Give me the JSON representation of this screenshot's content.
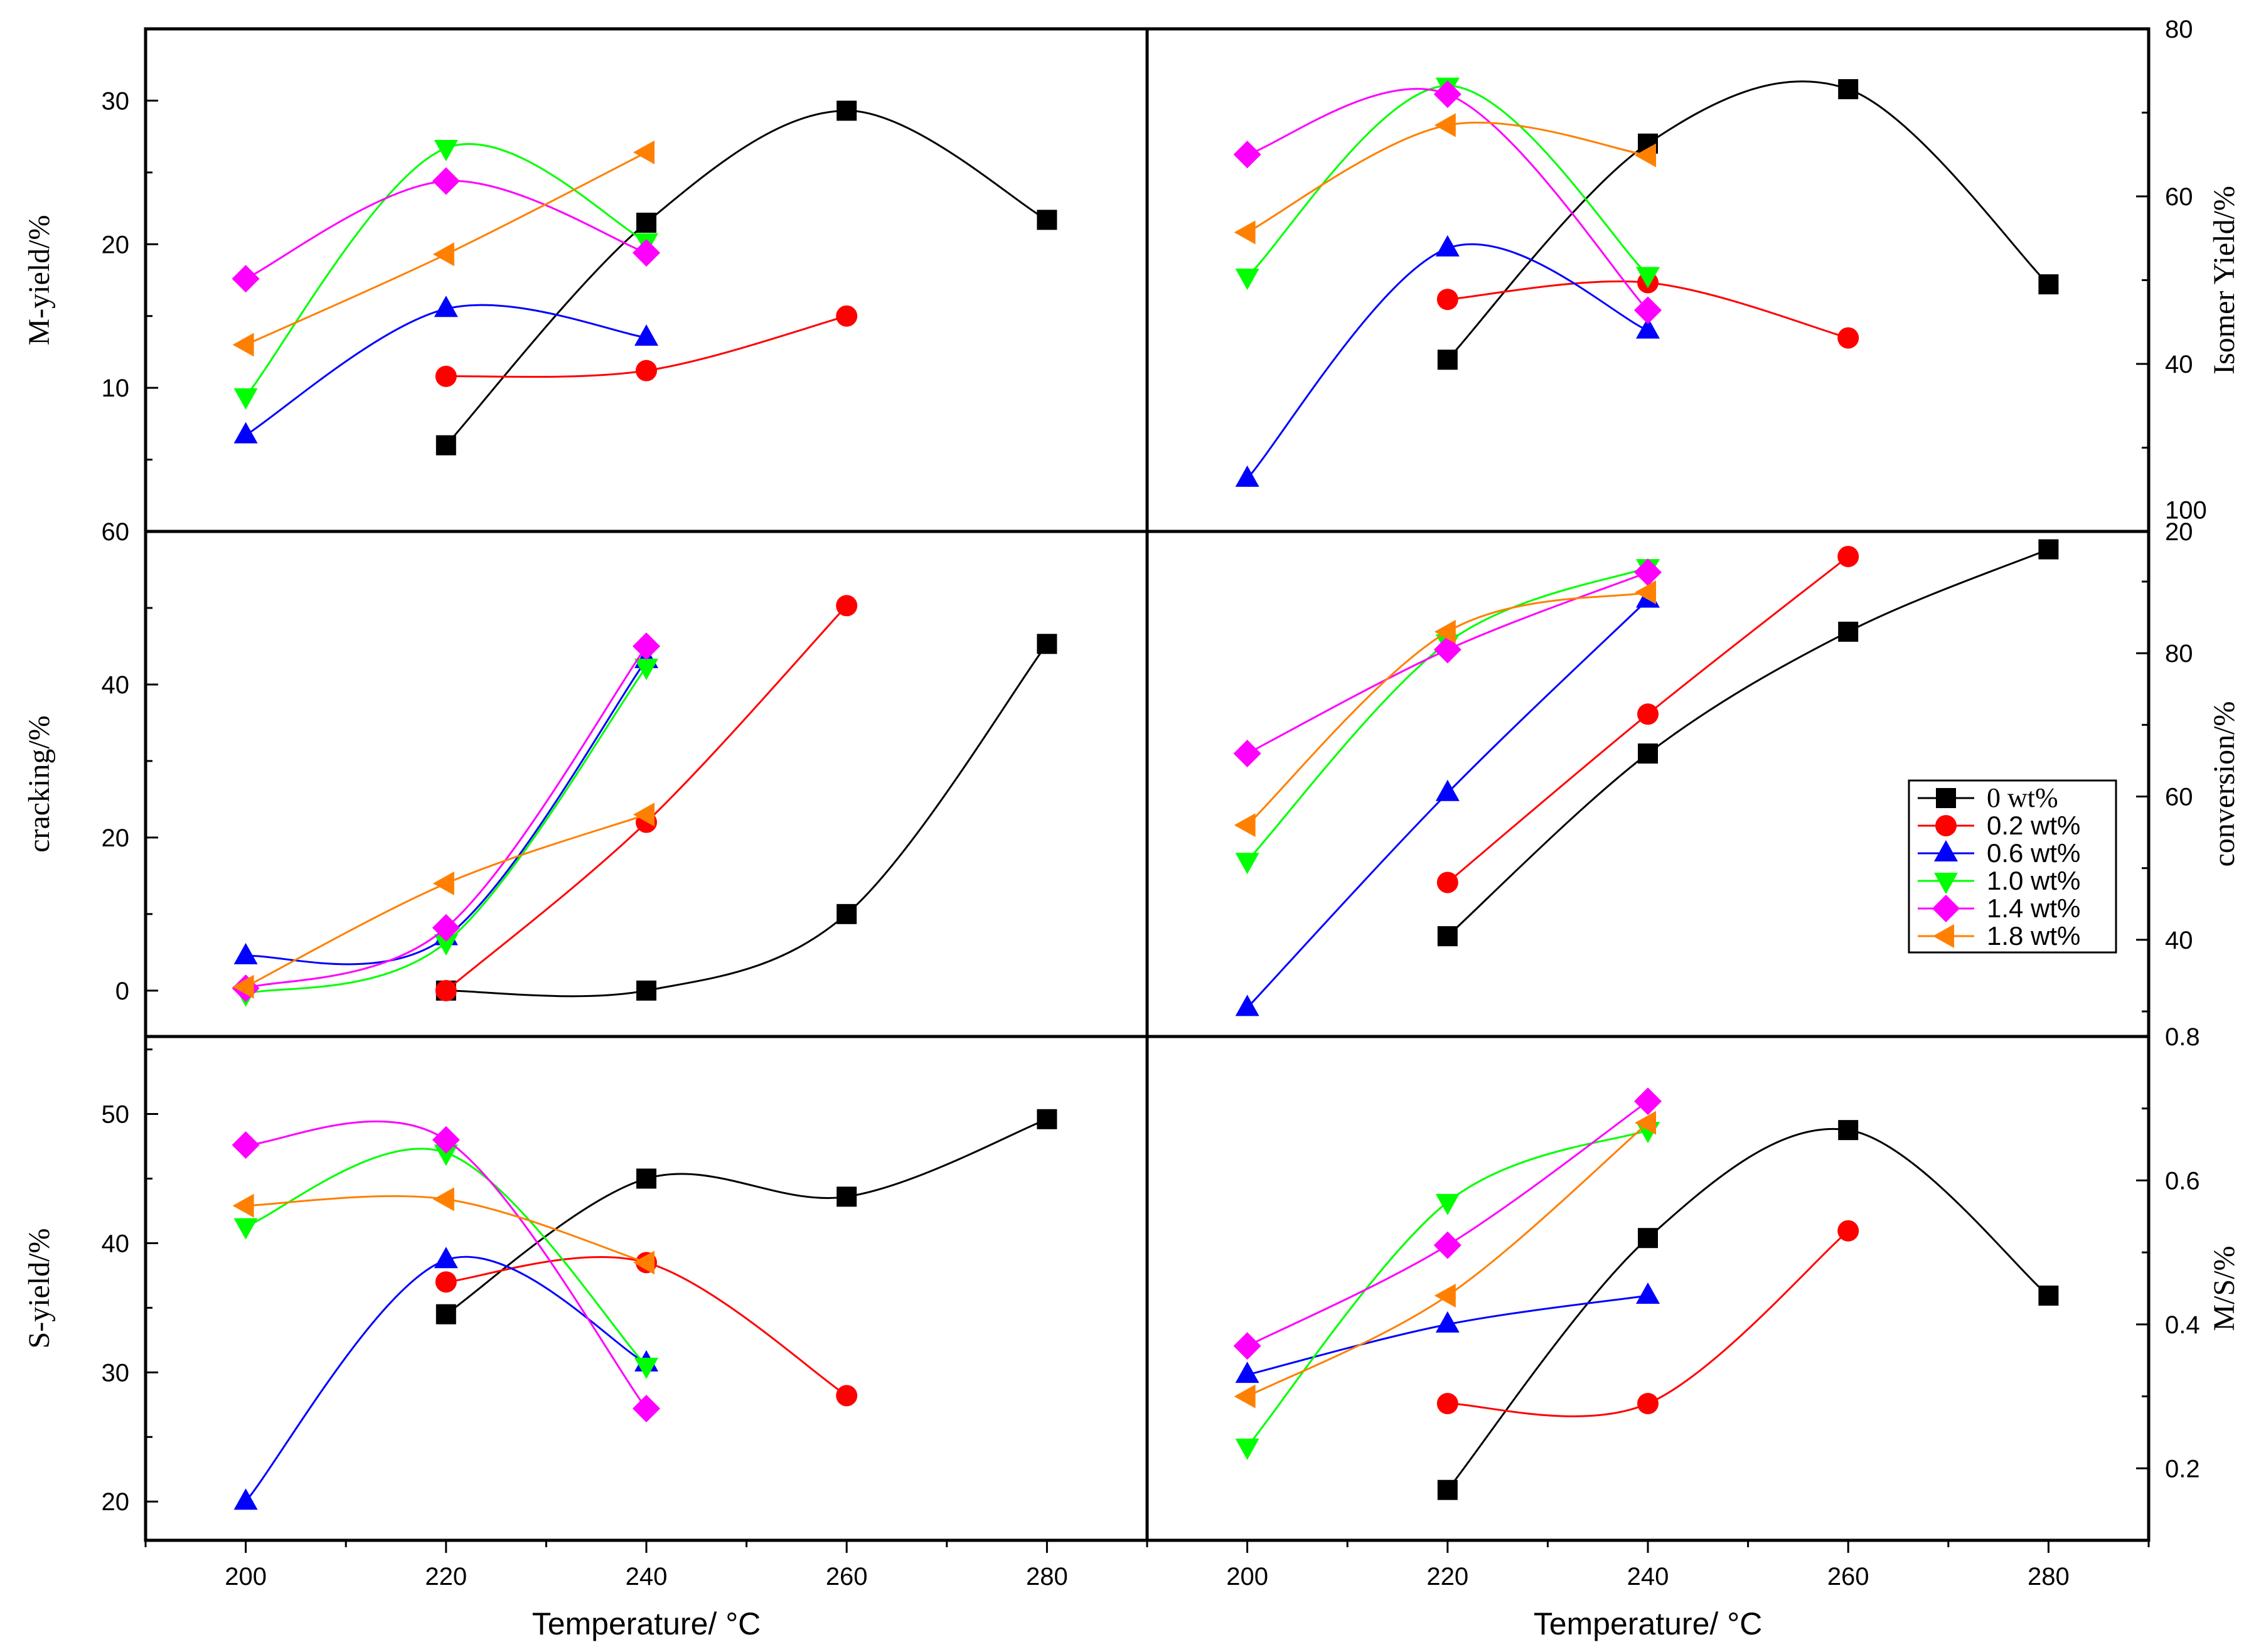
{
  "chart_data": {
    "type": "scatter",
    "x_axis": {
      "label_text": "Temperature/",
      "label_unit": "°C",
      "ticks": [
        "200",
        "220",
        "240",
        "260",
        "280"
      ],
      "range": [
        190,
        290
      ]
    },
    "legend": {
      "placement": "right-middle",
      "entries": [
        "0 wt%",
        "0.2 wt%",
        "0.6 wt%",
        "1.0 wt%",
        "1.4 wt%",
        "1.8 wt%"
      ]
    },
    "series_style": [
      {
        "name": "0 wt%",
        "color": "#000000",
        "marker": "square"
      },
      {
        "name": "0.2 wt%",
        "color": "#ff0000",
        "marker": "circle"
      },
      {
        "name": "0.6 wt%",
        "color": "#0000ff",
        "marker": "triangle-up"
      },
      {
        "name": "1.0 wt%",
        "color": "#00ff00",
        "marker": "triangle-down"
      },
      {
        "name": "1.4 wt%",
        "color": "#ff00ff",
        "marker": "diamond"
      },
      {
        "name": "1.8 wt%",
        "color": "#ff8000",
        "marker": "triangle-left"
      }
    ],
    "panels": [
      {
        "id": "m-yield",
        "ylabel": "M-yield/%",
        "axis_side": "left",
        "ylim": [
          0,
          35
        ],
        "yticks": [
          10,
          20,
          30
        ],
        "tick_labels": [
          "10",
          "20",
          "30"
        ],
        "series": [
          {
            "name": "0 wt%",
            "x": [
              220,
              240,
              260,
              280
            ],
            "y": [
              6.0,
              21.5,
              29.3,
              21.7
            ]
          },
          {
            "name": "0.2 wt%",
            "x": [
              220,
              240,
              260
            ],
            "y": [
              10.8,
              11.2,
              15.0
            ]
          },
          {
            "name": "0.6 wt%",
            "x": [
              200,
              220,
              240
            ],
            "y": [
              6.7,
              15.5,
              13.5
            ]
          },
          {
            "name": "1.0 wt%",
            "x": [
              200,
              220,
              240
            ],
            "y": [
              9.4,
              26.7,
              20.2
            ]
          },
          {
            "name": "1.4 wt%",
            "x": [
              200,
              220,
              240
            ],
            "y": [
              17.6,
              24.4,
              19.4
            ]
          },
          {
            "name": "1.8 wt%",
            "x": [
              200,
              220,
              240
            ],
            "y": [
              13.0,
              19.3,
              26.4
            ]
          }
        ]
      },
      {
        "id": "isomer-yield",
        "ylabel": "Isomer Yield/%",
        "axis_side": "right",
        "ylim": [
          20,
          80
        ],
        "yticks": [
          20,
          40,
          60,
          80
        ],
        "tick_labels": [
          "20",
          "40",
          "60",
          "80"
        ],
        "series": [
          {
            "name": "0 wt%",
            "x": [
              220,
              240,
              260,
              280
            ],
            "y": [
              40.5,
              66.3,
              72.8,
              49.5
            ]
          },
          {
            "name": "0.2 wt%",
            "x": [
              220,
              240,
              260
            ],
            "y": [
              47.7,
              49.7,
              43.1
            ]
          },
          {
            "name": "0.6 wt%",
            "x": [
              200,
              220,
              240
            ],
            "y": [
              26.3,
              53.8,
              44.0
            ]
          },
          {
            "name": "1.0 wt%",
            "x": [
              200,
              220,
              240
            ],
            "y": [
              50.4,
              73.2,
              50.6
            ]
          },
          {
            "name": "1.4 wt%",
            "x": [
              200,
              220,
              240
            ],
            "y": [
              65.0,
              72.2,
              46.4
            ]
          },
          {
            "name": "1.8 wt%",
            "x": [
              200,
              220,
              240
            ],
            "y": [
              55.7,
              68.5,
              64.9
            ]
          }
        ]
      },
      {
        "id": "cracking",
        "ylabel": "cracking/%",
        "axis_side": "left",
        "ylim": [
          -6,
          60
        ],
        "yticks": [
          0,
          20,
          40,
          60
        ],
        "tick_labels": [
          "0",
          "20",
          "40",
          "60"
        ],
        "series": [
          {
            "name": "0 wt%",
            "x": [
              220,
              240,
              260,
              280
            ],
            "y": [
              0.0,
              0.0,
              10.0,
              45.3
            ]
          },
          {
            "name": "0.2 wt%",
            "x": [
              220,
              240,
              260
            ],
            "y": [
              0.0,
              22.0,
              50.3
            ]
          },
          {
            "name": "0.6 wt%",
            "x": [
              200,
              220,
              240
            ],
            "y": [
              4.5,
              7.0,
              43.2
            ]
          },
          {
            "name": "1.0 wt%",
            "x": [
              200,
              220,
              240
            ],
            "y": [
              -0.4,
              6.3,
              42.3
            ]
          },
          {
            "name": "1.4 wt%",
            "x": [
              200,
              220,
              240
            ],
            "y": [
              0.3,
              8.2,
              45.0
            ]
          },
          {
            "name": "1.8 wt%",
            "x": [
              200,
              220,
              240
            ],
            "y": [
              0.5,
              14.0,
              23.0
            ]
          }
        ]
      },
      {
        "id": "conversion",
        "ylabel": "conversion/%",
        "axis_side": "right",
        "ylim": [
          26.5,
          97
        ],
        "yticks": [
          40,
          60,
          80,
          100
        ],
        "tick_labels": [
          "40",
          "60",
          "80",
          "100"
        ],
        "series": [
          {
            "name": "0 wt%",
            "x": [
              220,
              240,
              260,
              280
            ],
            "y": [
              40.5,
              66.0,
              83.0,
              94.5
            ]
          },
          {
            "name": "0.2 wt%",
            "x": [
              220,
              240,
              260
            ],
            "y": [
              48.0,
              71.5,
              93.5
            ]
          },
          {
            "name": "0.6 wt%",
            "x": [
              200,
              220,
              240
            ],
            "y": [
              30.5,
              60.5,
              87.5
            ]
          },
          {
            "name": "1.0 wt%",
            "x": [
              200,
              220,
              240
            ],
            "y": [
              51.0,
              81.5,
              92.0
            ]
          },
          {
            "name": "1.4 wt%",
            "x": [
              200,
              220,
              240
            ],
            "y": [
              66.0,
              80.5,
              91.3
            ]
          },
          {
            "name": "1.8 wt%",
            "x": [
              200,
              220,
              240
            ],
            "y": [
              56.0,
              83.0,
              88.5
            ]
          }
        ]
      },
      {
        "id": "s-yield",
        "ylabel": "S-yield/%",
        "axis_side": "left",
        "ylim": [
          17,
          56
        ],
        "yticks": [
          20,
          30,
          40,
          50
        ],
        "tick_labels": [
          "20",
          "30",
          "40",
          "50"
        ],
        "series": [
          {
            "name": "0 wt%",
            "x": [
              220,
              240,
              260,
              280
            ],
            "y": [
              34.5,
              45.0,
              43.6,
              49.6
            ]
          },
          {
            "name": "0.2 wt%",
            "x": [
              220,
              240,
              260
            ],
            "y": [
              37.0,
              38.5,
              28.2
            ]
          },
          {
            "name": "0.6 wt%",
            "x": [
              200,
              220,
              240
            ],
            "y": [
              20.0,
              38.7,
              30.7
            ]
          },
          {
            "name": "1.0 wt%",
            "x": [
              200,
              220,
              240
            ],
            "y": [
              41.3,
              47.0,
              30.5
            ]
          },
          {
            "name": "1.4 wt%",
            "x": [
              200,
              220,
              240
            ],
            "y": [
              47.6,
              48.0,
              27.2
            ]
          },
          {
            "name": "1.8 wt%",
            "x": [
              200,
              220,
              240
            ],
            "y": [
              42.9,
              43.4,
              38.5
            ]
          }
        ]
      },
      {
        "id": "m-s",
        "ylabel": "M/S/%",
        "axis_side": "right",
        "ylim": [
          0.1,
          0.8
        ],
        "yticks": [
          0.2,
          0.4,
          0.6,
          0.8
        ],
        "tick_labels": [
          "0.2",
          "0.4",
          "0.6",
          "0.8"
        ],
        "series": [
          {
            "name": "0 wt%",
            "x": [
              220,
              240,
              260,
              280
            ],
            "y": [
              0.17,
              0.52,
              0.67,
              0.44
            ]
          },
          {
            "name": "0.2 wt%",
            "x": [
              240,
              260,
              220
            ],
            "y": [
              0.29,
              0.53,
              0.29
            ]
          },
          {
            "name": "0.6 wt%",
            "x": [
              200,
              220,
              240
            ],
            "y": [
              0.33,
              0.4,
              0.44
            ]
          },
          {
            "name": "1.0 wt%",
            "x": [
              200,
              220,
              240
            ],
            "y": [
              0.23,
              0.57,
              0.67
            ]
          },
          {
            "name": "1.4 wt%",
            "x": [
              200,
              220,
              240
            ],
            "y": [
              0.37,
              0.51,
              0.71
            ]
          },
          {
            "name": "1.8 wt%",
            "x": [
              200,
              220,
              240
            ],
            "y": [
              0.3,
              0.44,
              0.68
            ]
          }
        ]
      }
    ]
  }
}
